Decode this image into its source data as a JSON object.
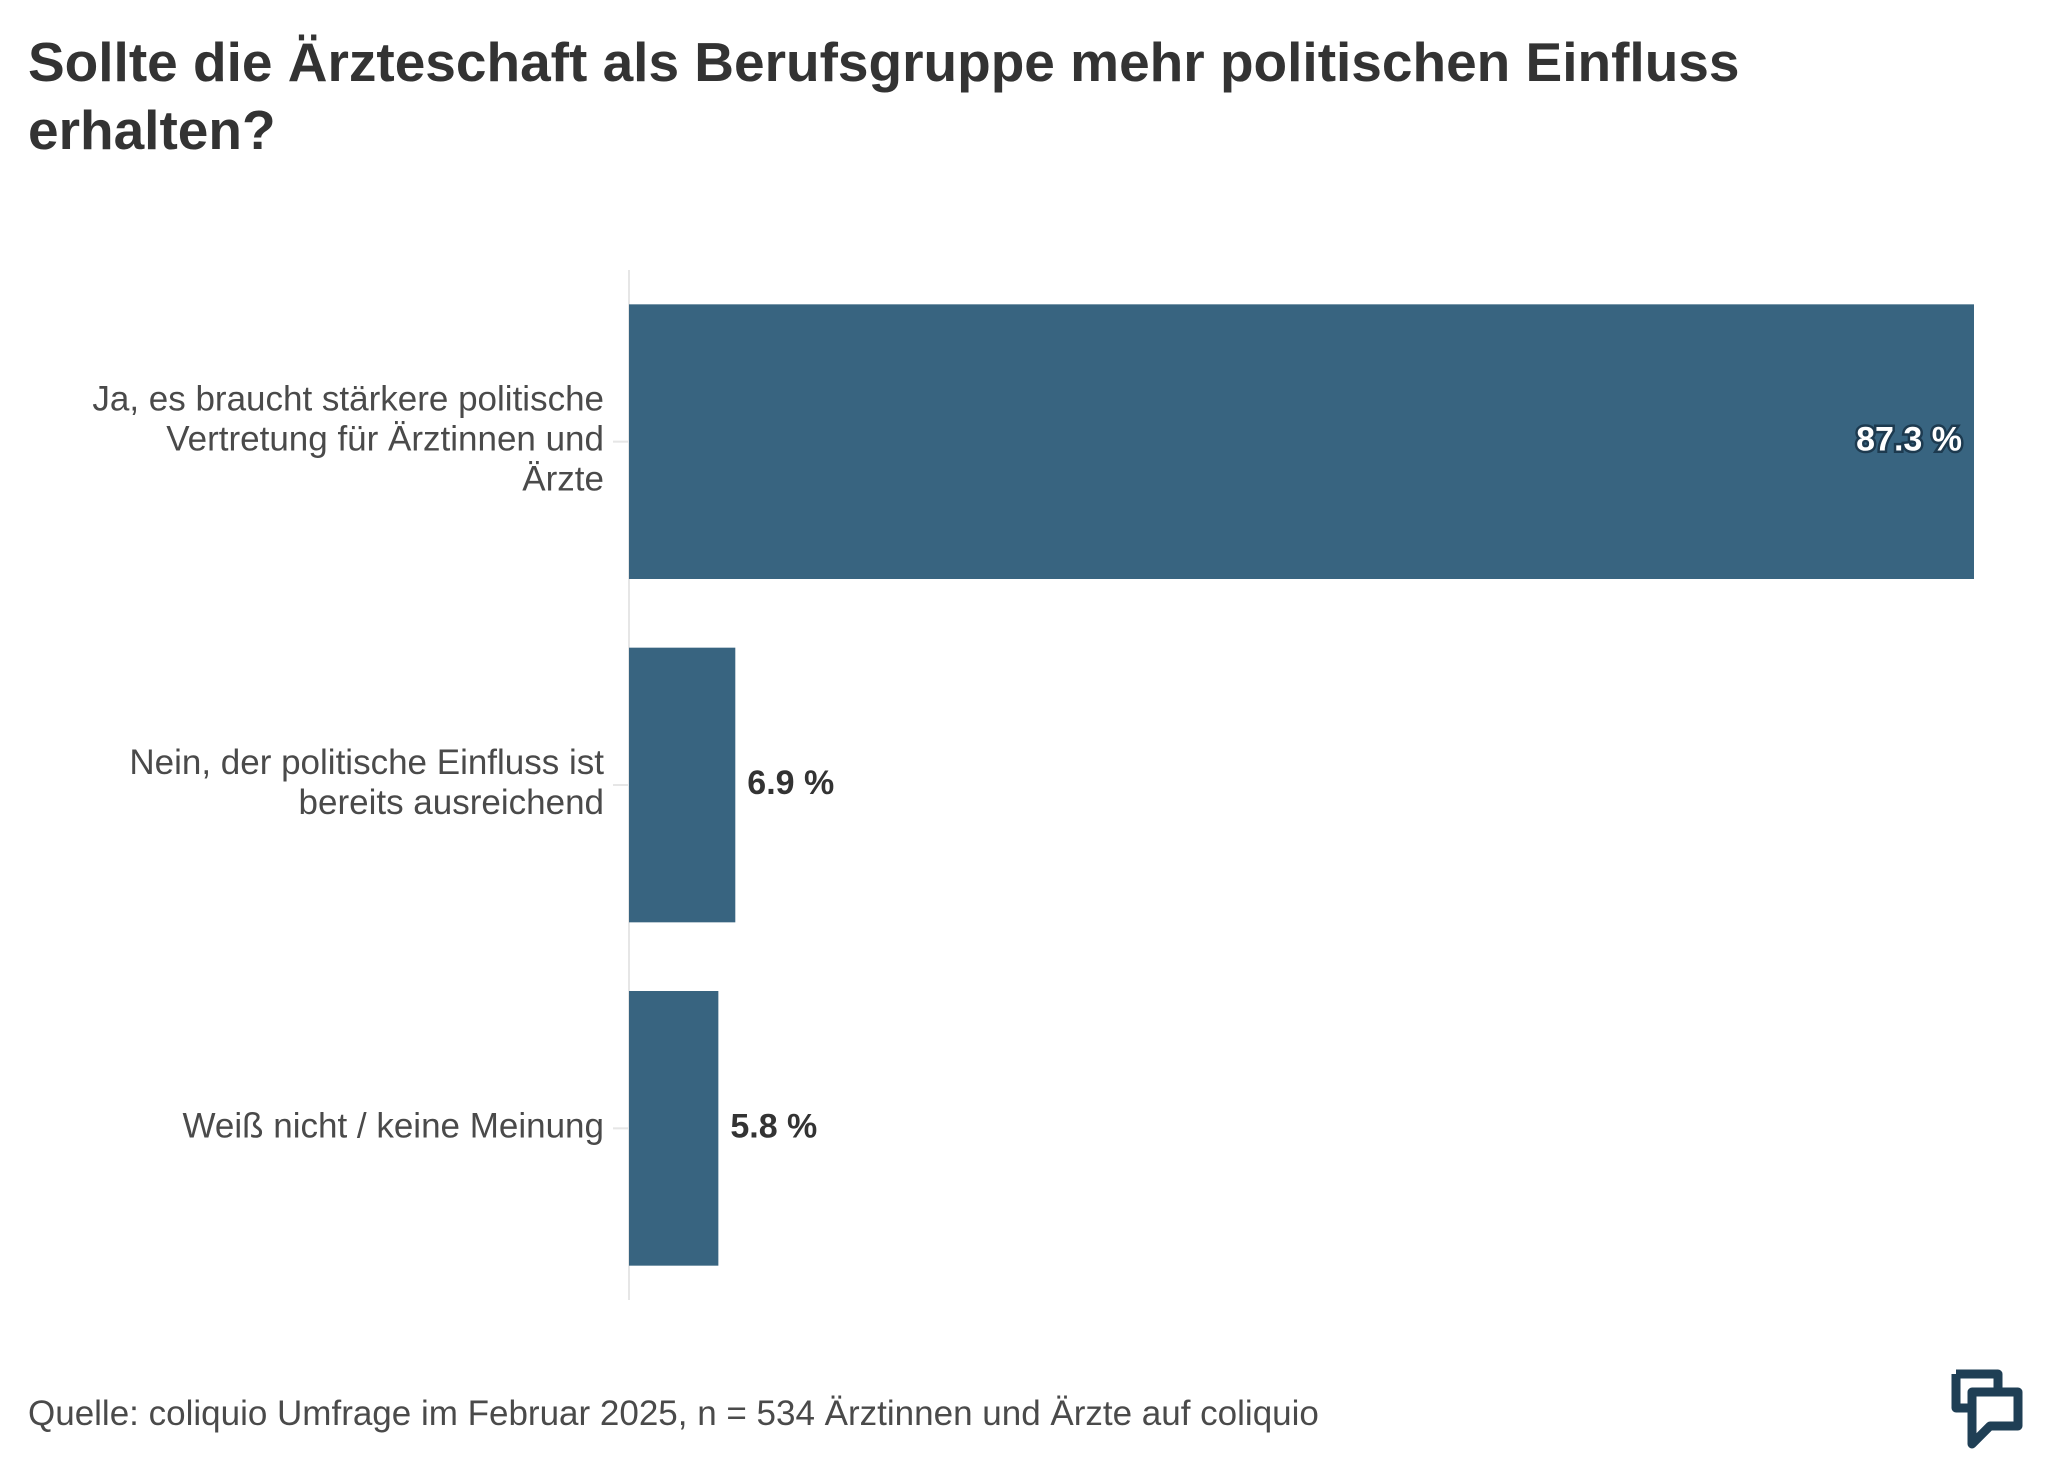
{
  "chart_data": {
    "type": "bar",
    "orientation": "horizontal",
    "title": "Sollte die Ärzteschaft als Berufsgruppe mehr politischen Einfluss erhalten?",
    "categories": [
      [
        "Ja, es braucht stärkere politische",
        "Vertretung für Ärztinnen und",
        "Ärzte"
      ],
      [
        "Nein, der politische Einfluss ist",
        "bereits ausreichend"
      ],
      [
        "Weiß nicht / keine Meinung"
      ]
    ],
    "values": [
      87.3,
      6.9,
      5.8
    ],
    "value_labels": [
      "87.3 %",
      "6.9 %",
      "5.8 %"
    ],
    "xlim": [
      0,
      87.3
    ],
    "unit": "%",
    "grid": false,
    "legend": "none",
    "bar_color": "#386480",
    "source": "Quelle: coliquio Umfrage im Februar 2025, n = 534 Ärztinnen und Ärzte auf coliquio"
  },
  "brand": {
    "logo_icon": "coliquio-speech-bubble-icon",
    "logo_color": "#1f3f55"
  }
}
